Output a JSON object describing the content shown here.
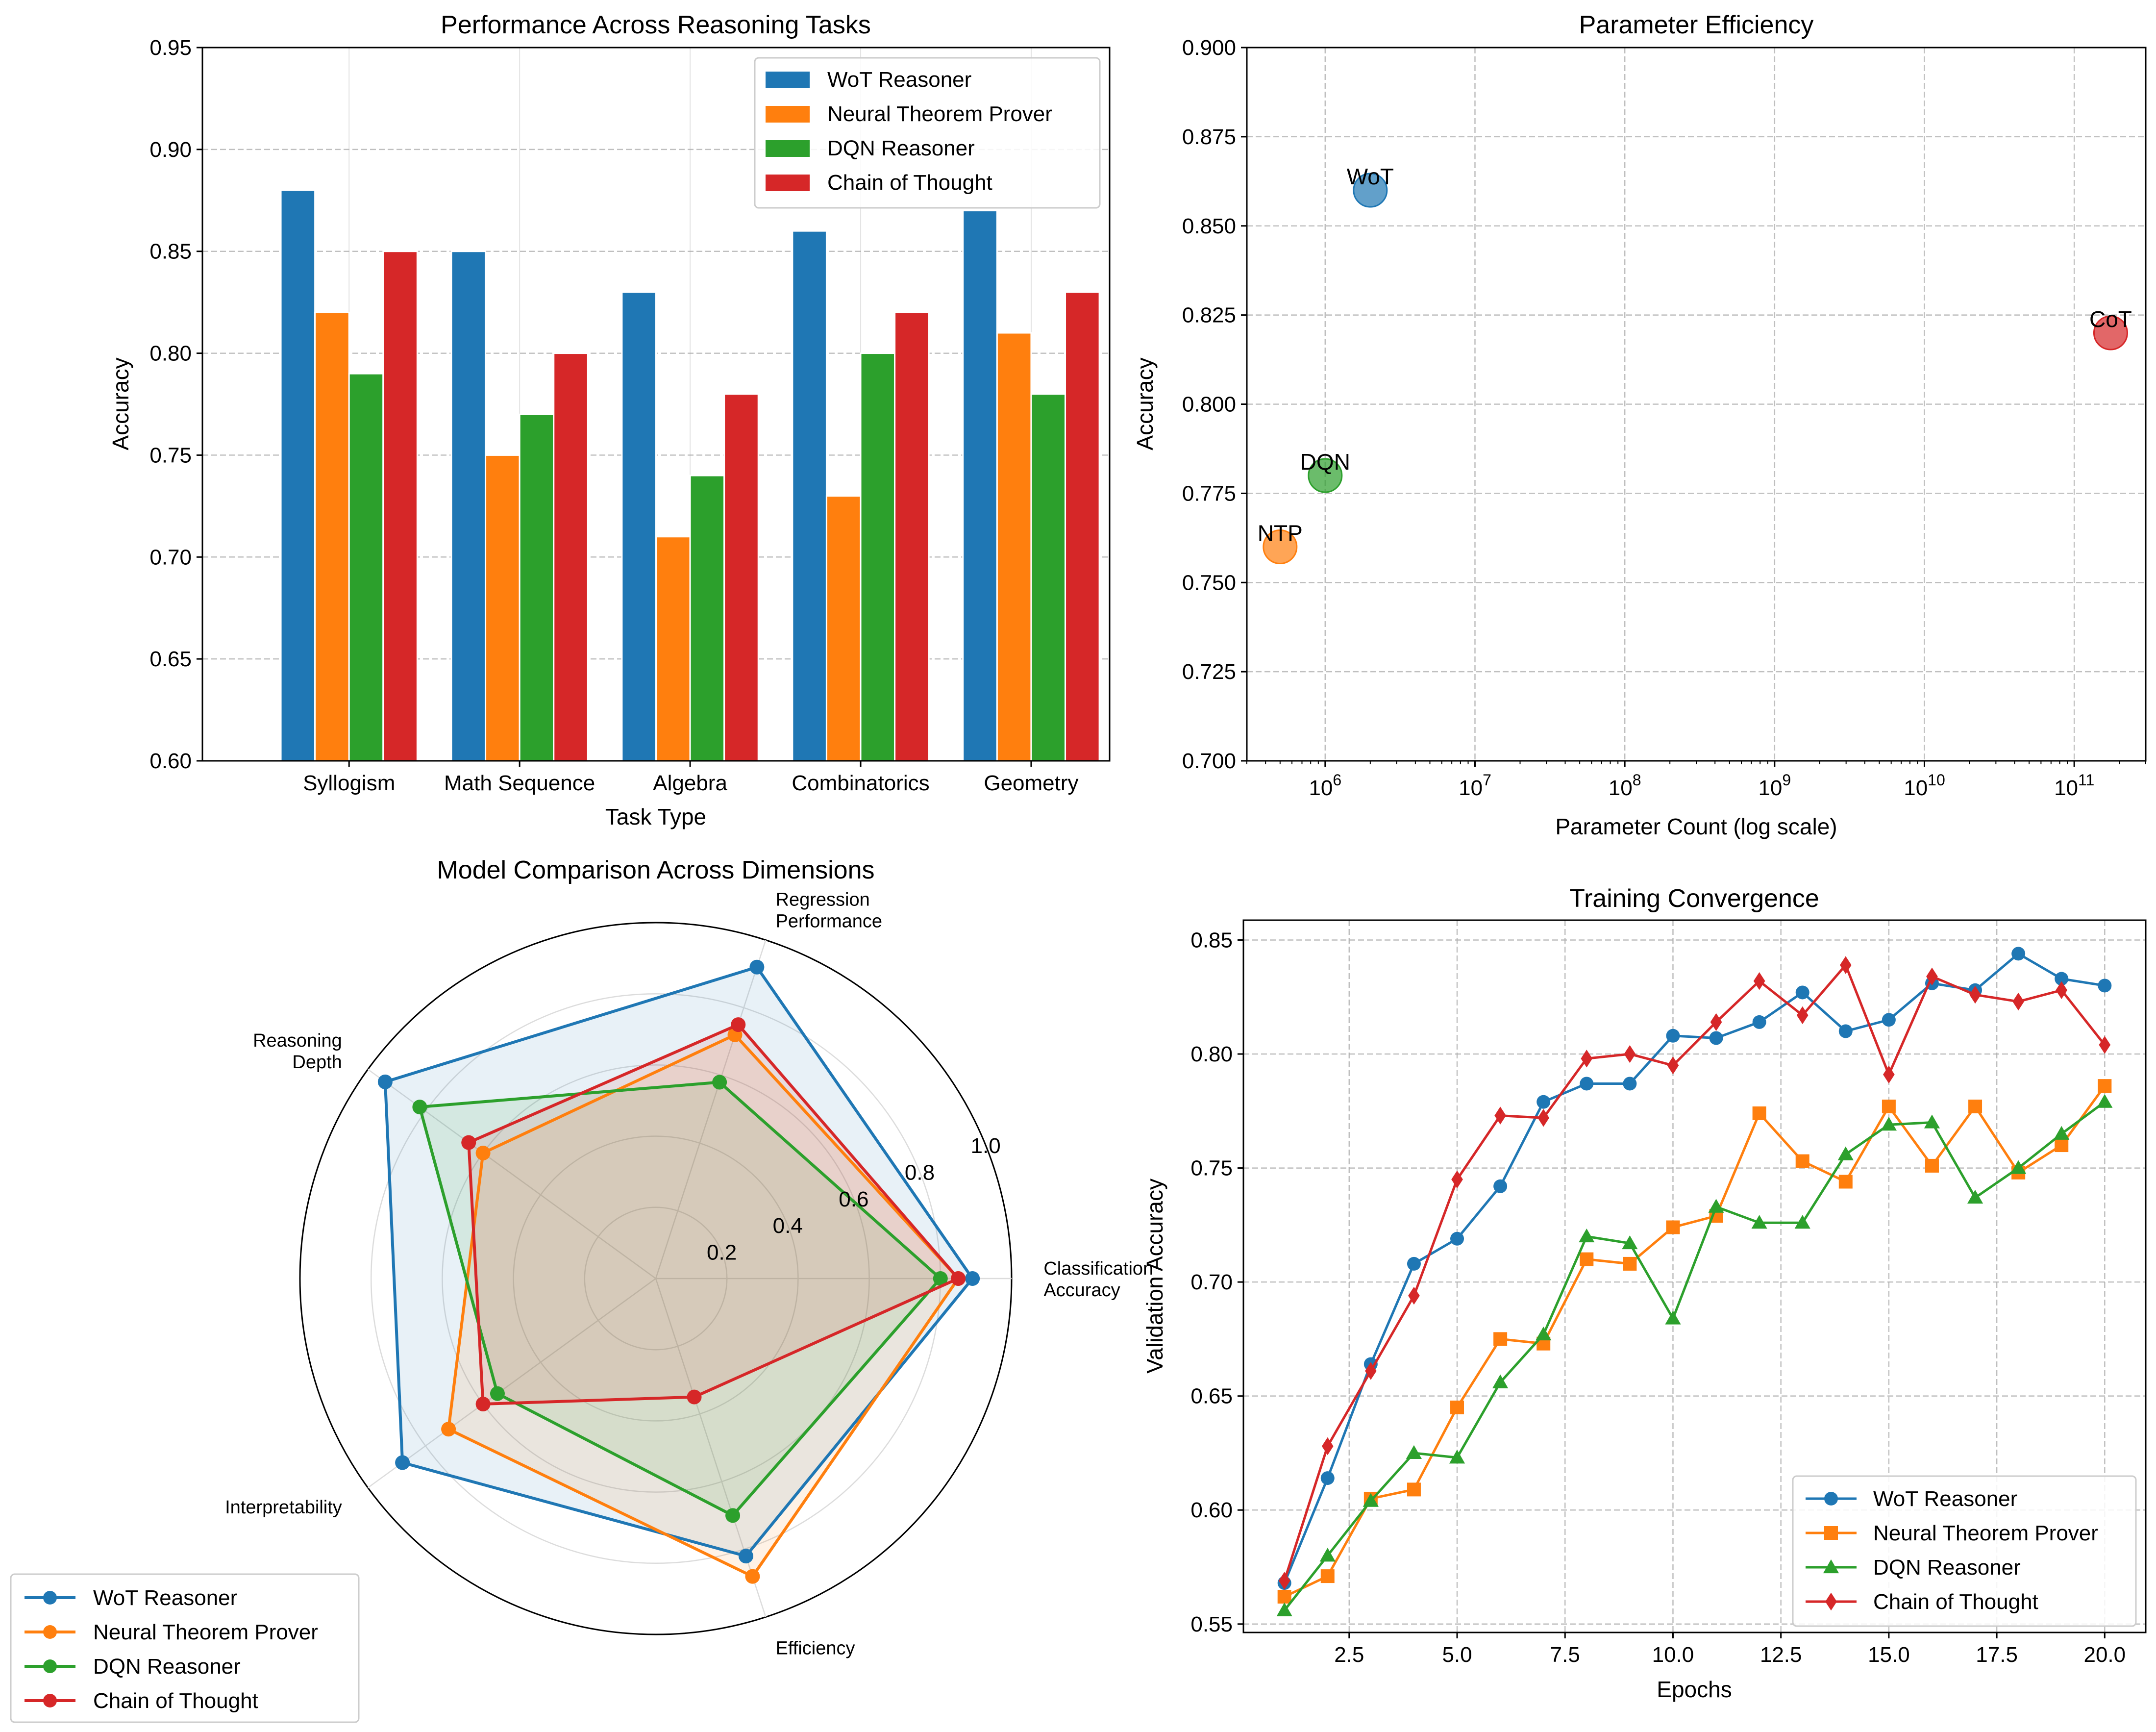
{
  "chart_data": [
    {
      "type": "bar",
      "title": "Performance Across Reasoning Tasks",
      "xlabel": "Task Type",
      "ylabel": "Accuracy",
      "ylim": [
        0.6,
        0.95
      ],
      "yticks": [
        0.6,
        0.65,
        0.7,
        0.75,
        0.8,
        0.85,
        0.9,
        0.95
      ],
      "ytick_labels": [
        "0.60",
        "0.65",
        "0.70",
        "0.75",
        "0.80",
        "0.85",
        "0.90",
        "0.95"
      ],
      "grid": "y dashed",
      "legend_position": "upper right",
      "categories": [
        "Syllogism",
        "Math Sequence",
        "Algebra",
        "Combinatorics",
        "Geometry"
      ],
      "series": [
        {
          "name": "WoT Reasoner",
          "color": "#1f77b4",
          "values": [
            0.88,
            0.85,
            0.83,
            0.86,
            0.87
          ]
        },
        {
          "name": "Neural Theorem Prover",
          "color": "#ff7f0e",
          "values": [
            0.82,
            0.75,
            0.71,
            0.73,
            0.81
          ]
        },
        {
          "name": "DQN Reasoner",
          "color": "#2ca02c",
          "values": [
            0.79,
            0.77,
            0.74,
            0.8,
            0.78
          ]
        },
        {
          "name": "Chain of Thought",
          "color": "#d62728",
          "values": [
            0.85,
            0.8,
            0.78,
            0.82,
            0.83
          ]
        }
      ]
    },
    {
      "type": "scatter",
      "title": "Parameter Efficiency",
      "xlabel": "Parameter Count (log scale)",
      "ylabel": "Accuracy",
      "xscale": "log",
      "xlim": [
        300000,
        300000000000
      ],
      "ylim": [
        0.7,
        0.9
      ],
      "xtick_exponents": [
        "6",
        "7",
        "8",
        "9",
        "10",
        "11"
      ],
      "xtick_base": "10",
      "yticks": [
        0.7,
        0.725,
        0.75,
        0.775,
        0.8,
        0.825,
        0.85,
        0.875,
        0.9
      ],
      "ytick_labels": [
        "0.700",
        "0.725",
        "0.750",
        "0.775",
        "0.800",
        "0.825",
        "0.850",
        "0.875",
        "0.900"
      ],
      "grid": "both dashed",
      "points": [
        {
          "label": "WoT",
          "x": 2000000,
          "y": 0.86,
          "color": "#1f77b4"
        },
        {
          "label": "NTP",
          "x": 500000,
          "y": 0.76,
          "color": "#ff7f0e"
        },
        {
          "label": "DQN",
          "x": 1000000,
          "y": 0.78,
          "color": "#2ca02c"
        },
        {
          "label": "CoT",
          "x": 175000000000,
          "y": 0.82,
          "color": "#d62728"
        }
      ]
    },
    {
      "type": "radar",
      "title": "Model Comparison Across Dimensions",
      "axes": [
        {
          "lines": [
            "Classification",
            "Accuracy"
          ]
        },
        {
          "lines": [
            "Regression",
            "Performance"
          ]
        },
        {
          "lines": [
            "Reasoning",
            "Depth"
          ]
        },
        {
          "lines": [
            "Interpretability"
          ]
        },
        {
          "lines": [
            "Efficiency"
          ]
        }
      ],
      "rlim": [
        0,
        1.0
      ],
      "rticks": [
        0.2,
        0.4,
        0.6,
        0.8,
        1.0
      ],
      "rtick_labels": [
        "0.2",
        "0.4",
        "0.6",
        "0.8",
        "1.0"
      ],
      "legend_position": "lower left",
      "series": [
        {
          "name": "WoT Reasoner",
          "color": "#1f77b4",
          "values": [
            0.89,
            0.92,
            0.94,
            0.88,
            0.82
          ]
        },
        {
          "name": "Neural Theorem Prover",
          "color": "#ff7f0e",
          "values": [
            0.85,
            0.72,
            0.6,
            0.72,
            0.88
          ]
        },
        {
          "name": "DQN Reasoner",
          "color": "#2ca02c",
          "values": [
            0.8,
            0.58,
            0.82,
            0.55,
            0.7
          ]
        },
        {
          "name": "Chain of Thought",
          "color": "#d62728",
          "values": [
            0.85,
            0.75,
            0.65,
            0.6,
            0.35
          ]
        }
      ]
    },
    {
      "type": "line",
      "title": "Training Convergence",
      "xlabel": "Epochs",
      "ylabel": "Validation Accuracy",
      "xlim": [
        0.05,
        20.95
      ],
      "ylim": [
        0.5463,
        0.8587
      ],
      "xticks": [
        2.5,
        5.0,
        7.5,
        10.0,
        12.5,
        15.0,
        17.5,
        20.0
      ],
      "xtick_labels": [
        "2.5",
        "5.0",
        "7.5",
        "10.0",
        "12.5",
        "15.0",
        "17.5",
        "20.0"
      ],
      "yticks": [
        0.55,
        0.6,
        0.65,
        0.7,
        0.75,
        0.8,
        0.85
      ],
      "ytick_labels": [
        "0.55",
        "0.60",
        "0.65",
        "0.70",
        "0.75",
        "0.80",
        "0.85"
      ],
      "grid": "both dashed",
      "legend_position": "lower right",
      "x": [
        1,
        2,
        3,
        4,
        5,
        6,
        7,
        8,
        9,
        10,
        11,
        12,
        13,
        14,
        15,
        16,
        17,
        18,
        19,
        20
      ],
      "series": [
        {
          "name": "WoT Reasoner",
          "color": "#1f77b4",
          "marker": "circle",
          "values": [
            0.568,
            0.614,
            0.664,
            0.708,
            0.719,
            0.742,
            0.779,
            0.787,
            0.787,
            0.808,
            0.807,
            0.814,
            0.827,
            0.81,
            0.815,
            0.831,
            0.828,
            0.844,
            0.833,
            0.83
          ]
        },
        {
          "name": "Neural Theorem Prover",
          "color": "#ff7f0e",
          "marker": "square",
          "values": [
            0.562,
            0.571,
            0.605,
            0.609,
            0.645,
            0.675,
            0.673,
            0.71,
            0.708,
            0.724,
            0.729,
            0.774,
            0.753,
            0.744,
            0.777,
            0.751,
            0.777,
            0.748,
            0.76,
            0.786
          ]
        },
        {
          "name": "DQN Reasoner",
          "color": "#2ca02c",
          "marker": "triangle",
          "values": [
            0.556,
            0.58,
            0.604,
            0.625,
            0.623,
            0.656,
            0.677,
            0.72,
            0.717,
            0.684,
            0.733,
            0.726,
            0.726,
            0.756,
            0.769,
            0.77,
            0.737,
            0.75,
            0.765,
            0.779
          ]
        },
        {
          "name": "Chain of Thought",
          "color": "#d62728",
          "marker": "diamond",
          "values": [
            0.569,
            0.628,
            0.661,
            0.694,
            0.745,
            0.773,
            0.772,
            0.798,
            0.8,
            0.795,
            0.814,
            0.832,
            0.817,
            0.839,
            0.791,
            0.834,
            0.826,
            0.823,
            0.828,
            0.804
          ]
        }
      ]
    }
  ]
}
